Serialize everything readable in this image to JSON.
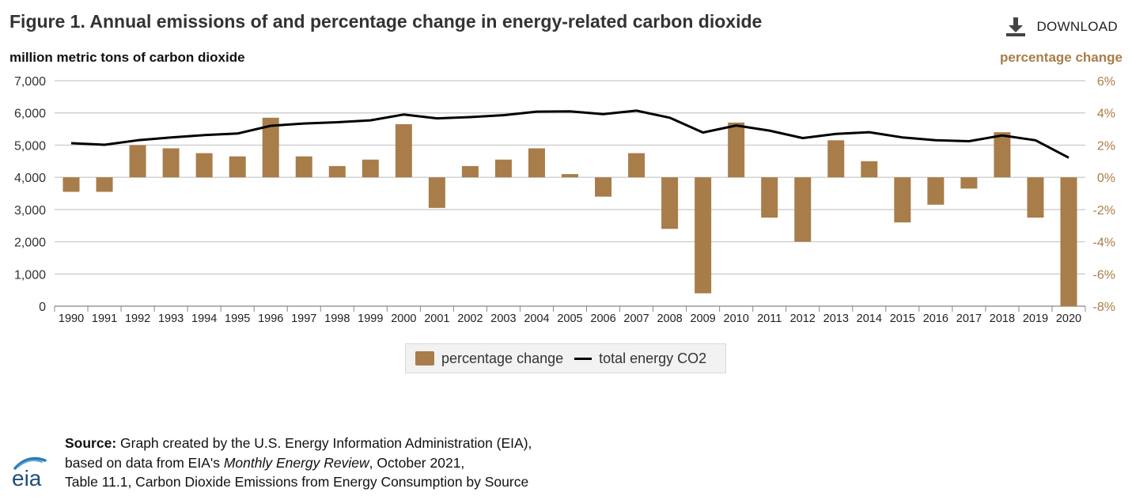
{
  "header": {
    "title": "Figure 1. Annual emissions of and percentage change in energy-related carbon dioxide",
    "download_label": "DOWNLOAD"
  },
  "axes": {
    "left_label": "million metric tons of carbon dioxide",
    "right_label": "percentage change"
  },
  "colors": {
    "bar": "#a87d4a",
    "line": "#000000",
    "grid": "#c8c8c8",
    "right_axis_text": "#a87d4a"
  },
  "chart_data": {
    "type": "bar",
    "categories": [
      "1990",
      "1991",
      "1992",
      "1993",
      "1994",
      "1995",
      "1996",
      "1997",
      "1998",
      "1999",
      "2000",
      "2001",
      "2002",
      "2003",
      "2004",
      "2005",
      "2006",
      "2007",
      "2008",
      "2009",
      "2010",
      "2011",
      "2012",
      "2013",
      "2014",
      "2015",
      "2016",
      "2017",
      "2018",
      "2019",
      "2020"
    ],
    "series": [
      {
        "name": "percentage change",
        "kind": "bar",
        "axis": "right",
        "values": [
          -0.9,
          -0.9,
          2.0,
          1.8,
          1.5,
          1.3,
          3.7,
          1.3,
          0.7,
          1.1,
          3.3,
          -1.9,
          0.7,
          1.1,
          1.8,
          0.2,
          -1.2,
          1.5,
          -3.2,
          -7.2,
          3.4,
          -2.5,
          -4.0,
          2.3,
          1.0,
          -2.8,
          -1.7,
          -0.7,
          2.8,
          -2.5,
          -8.0
        ]
      },
      {
        "name": "total energy CO2",
        "kind": "line",
        "axis": "left",
        "values": [
          5060,
          5010,
          5150,
          5240,
          5310,
          5360,
          5600,
          5670,
          5710,
          5770,
          5950,
          5830,
          5870,
          5930,
          6040,
          6050,
          5960,
          6070,
          5850,
          5390,
          5610,
          5450,
          5220,
          5350,
          5400,
          5240,
          5150,
          5120,
          5300,
          5150,
          4610
        ]
      }
    ],
    "left_axis": {
      "ylim": [
        0,
        7000
      ],
      "ticks": [
        "0",
        "1,000",
        "2,000",
        "3,000",
        "4,000",
        "5,000",
        "6,000",
        "7,000"
      ]
    },
    "right_axis": {
      "ylim": [
        -8,
        6
      ],
      "ticks": [
        "-8%",
        "-6%",
        "-4%",
        "-2%",
        "0%",
        "2%",
        "4%",
        "6%"
      ]
    },
    "grid": true,
    "legend_position": "bottom-center"
  },
  "legend": {
    "bar_label": "percentage change",
    "line_label": "total energy CO2"
  },
  "source": {
    "bold": "Source:",
    "line1": " Graph created by the U.S. Energy Information Administration (EIA),",
    "line2_pre": "based on data from EIA's ",
    "line2_italic": "Monthly Energy Review",
    "line2_post": ", October 2021,",
    "line3": "Table 11.1, Carbon Dioxide Emissions from Energy Consumption by Source"
  },
  "logo": {
    "text": "eia"
  }
}
